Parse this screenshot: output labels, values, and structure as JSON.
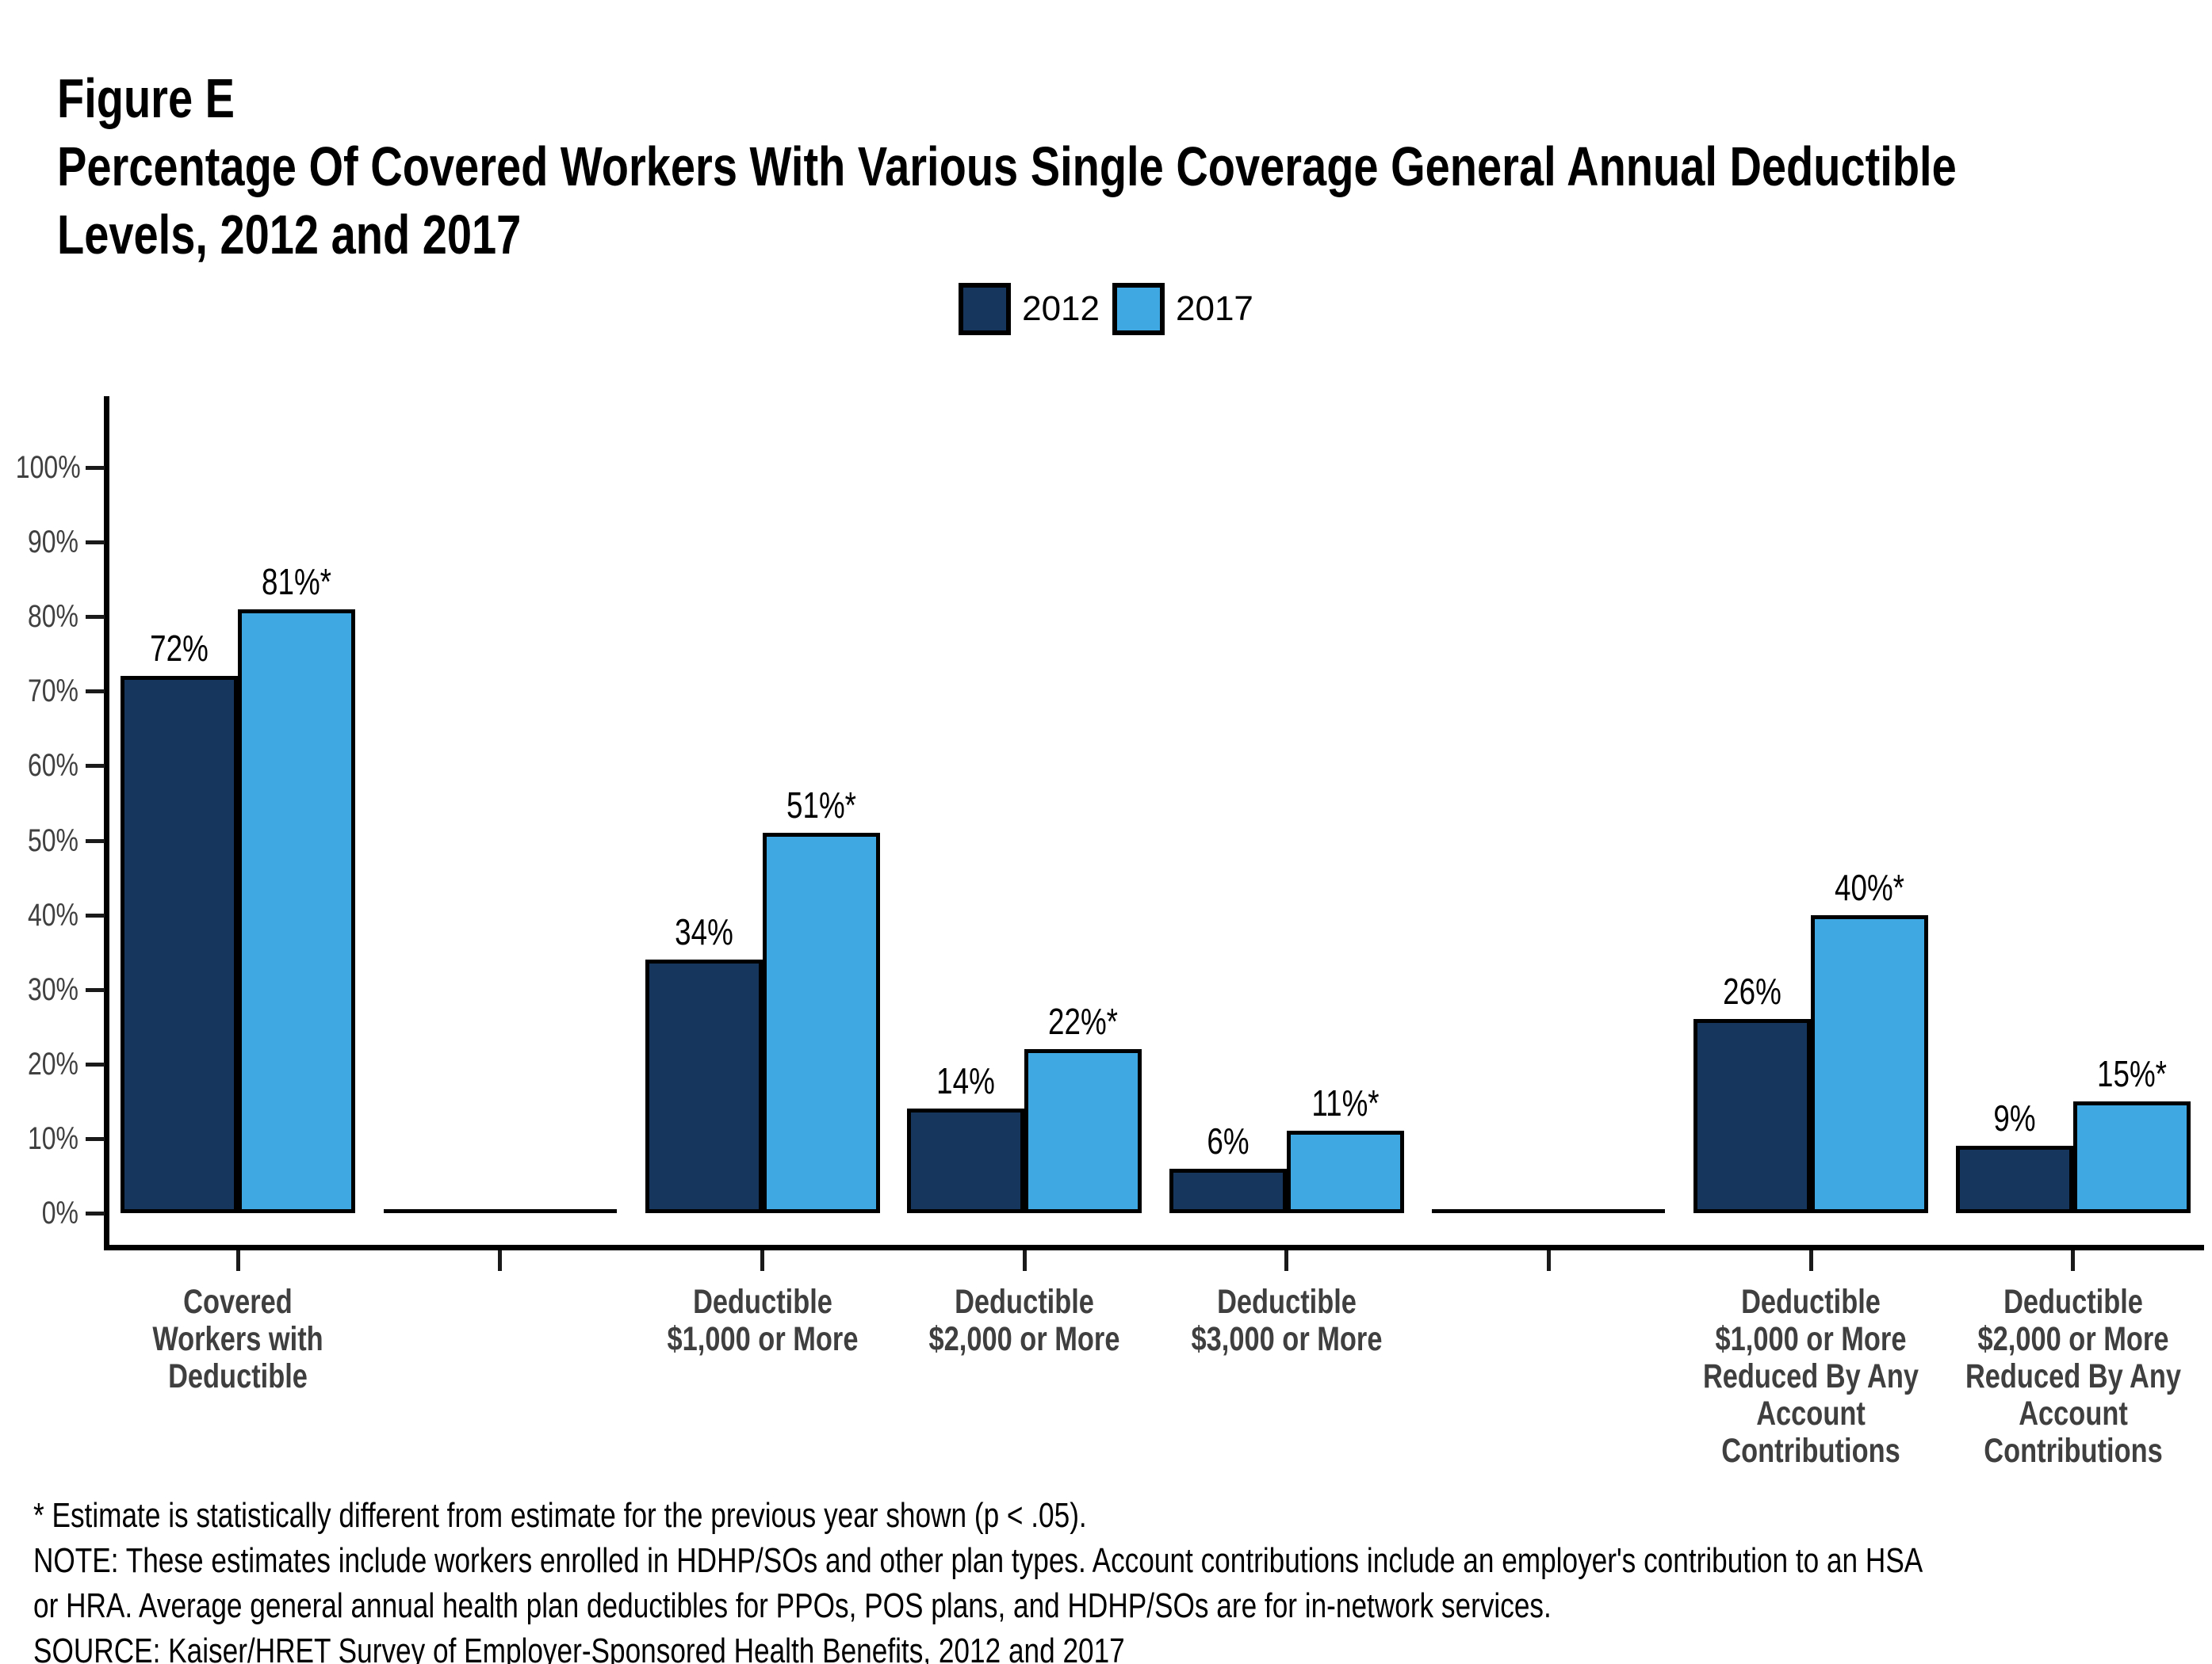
{
  "header": {
    "figure_label": "Figure E",
    "title_line1": "Percentage Of Covered Workers With Various Single Coverage General Annual Deductible",
    "title_line2": "Levels, 2012 and 2017"
  },
  "legend": {
    "items": [
      {
        "label": "2012",
        "color": "#17365D"
      },
      {
        "label": "2017",
        "color": "#3FA7E1"
      }
    ]
  },
  "chart_data": {
    "type": "bar",
    "figure_label": "Figure E",
    "title": "Percentage Of Covered Workers With Various Single Coverage General Annual Deductible Levels, 2012 and 2017",
    "categories": [
      "Covered\nWorkers with\nDeductible",
      "",
      "Deductible\n$1,000 or More",
      "Deductible\n$2,000 or More",
      "Deductible\n$3,000 or More",
      "",
      "Deductible\n$1,000 or More\nReduced By Any\nAccount\nContributions",
      "Deductible\n$2,000 or More\nReduced By Any\nAccount\nContributions"
    ],
    "series": [
      {
        "name": "2012",
        "color": "#17365D",
        "values": [
          72,
          null,
          34,
          14,
          6,
          null,
          26,
          9
        ],
        "labels": [
          "72%",
          null,
          "34%",
          "14%",
          "6%",
          null,
          "26%",
          "9%"
        ]
      },
      {
        "name": "2017",
        "color": "#3FA7E1",
        "values": [
          81,
          null,
          51,
          22,
          11,
          null,
          40,
          15
        ],
        "labels": [
          "81%*",
          null,
          "51%*",
          "22%*",
          "11%*",
          null,
          "40%*",
          "15%*"
        ]
      }
    ],
    "xlabel": "",
    "ylabel": "",
    "ylim": [
      0,
      100
    ],
    "ytick_step": 10,
    "ytick_format": "{v}%",
    "grid": false,
    "legend_position": "top-center",
    "bar_outline_color": "#000000",
    "empty_categories_drawn_as_zero_line": true
  },
  "footnotes": {
    "lines": [
      "* Estimate is statistically different from estimate for the previous year shown (p < .05).",
      "NOTE: These estimates include workers enrolled in HDHP/SOs and other plan types. Account contributions include an employer's contribution to an HSA",
      "or HRA. Average general annual health plan deductibles for PPOs, POS plans, and HDHP/SOs are for in-network services.",
      "SOURCE: Kaiser/HRET Survey of Employer-Sponsored Health Benefits, 2012 and 2017"
    ]
  },
  "colors": {
    "bar_2012": "#17365D",
    "bar_2017": "#3FA7E1",
    "axis": "#000000",
    "tick_label": "#404040",
    "category_label": "#3F3F3F",
    "title": "#000000",
    "background": "#FFFFFF"
  }
}
